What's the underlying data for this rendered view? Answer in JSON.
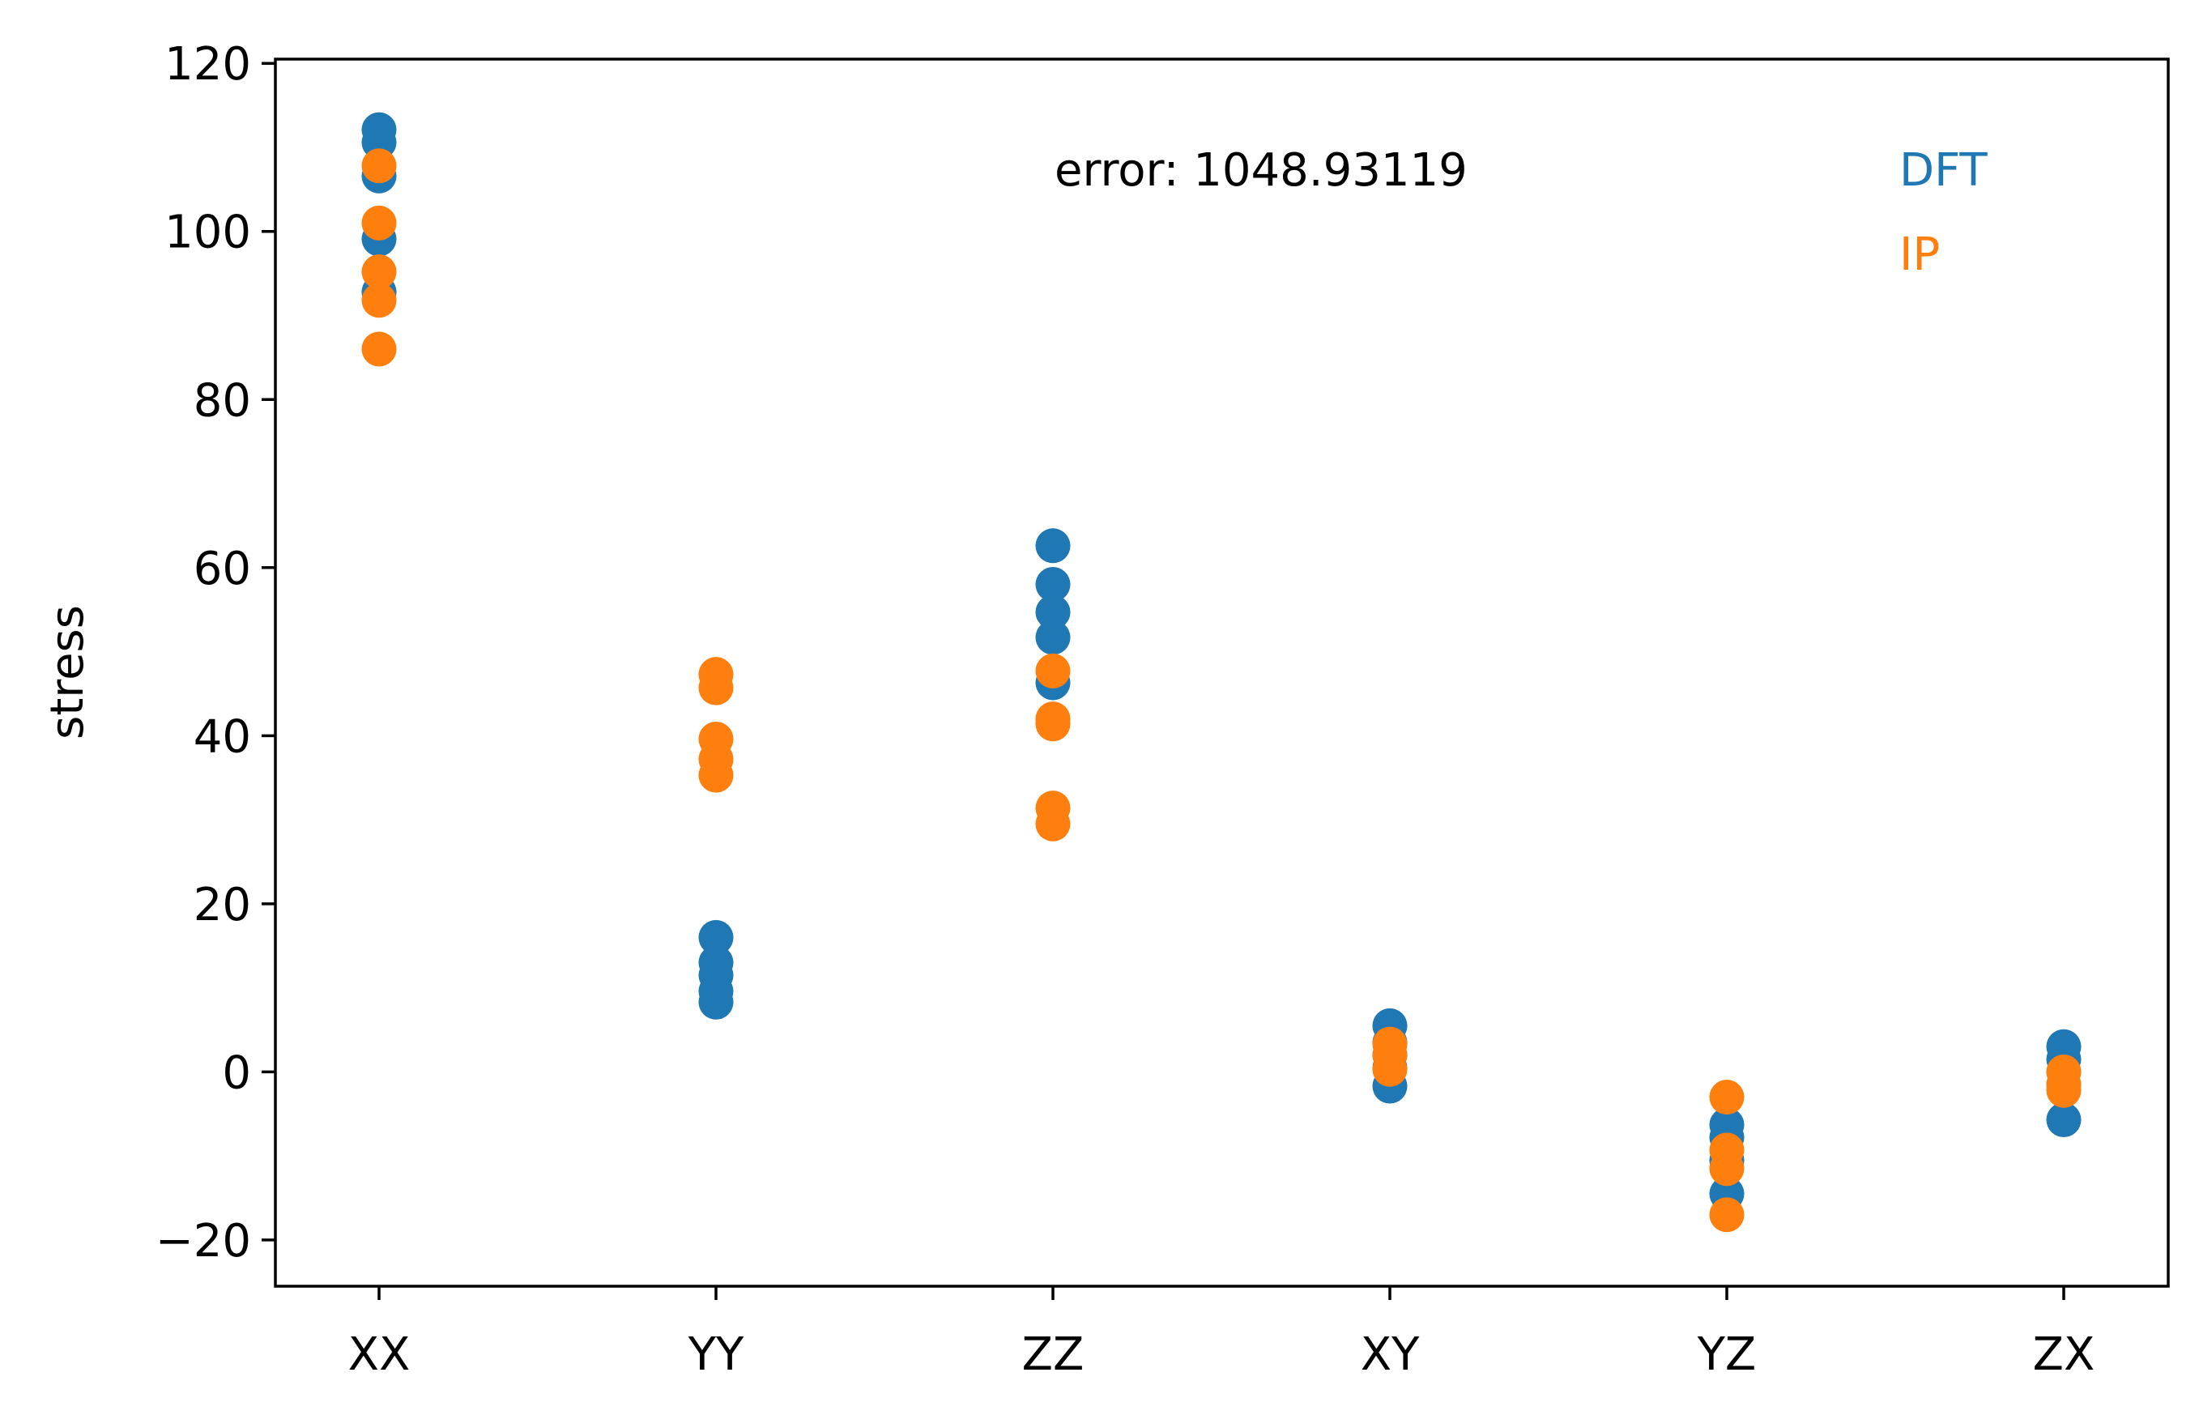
{
  "chart_data": {
    "type": "scatter",
    "title": "",
    "xlabel": "",
    "ylabel": "stress",
    "categories": [
      "XX",
      "YY",
      "ZZ",
      "XY",
      "YZ",
      "ZX"
    ],
    "ylim": [
      -25.5,
      120.5
    ],
    "yticks": [
      -20,
      0,
      20,
      40,
      60,
      80,
      100,
      120
    ],
    "ytick_labels": [
      "−20",
      "0",
      "20",
      "40",
      "60",
      "80",
      "100",
      "120"
    ],
    "grid": false,
    "annotation": "error: 1048.93119",
    "legend_position": "top-right",
    "colors": {
      "DFT": "#1f77b4",
      "IP": "#ff7f0e"
    },
    "series": [
      {
        "name": "DFT",
        "color": "#1f77b4",
        "points": [
          [
            "XX",
            112.1
          ],
          [
            "XX",
            110.6
          ],
          [
            "XX",
            106.6
          ],
          [
            "XX",
            99.1
          ],
          [
            "XX",
            92.8
          ],
          [
            "YY",
            16.0
          ],
          [
            "YY",
            13.0
          ],
          [
            "YY",
            11.5
          ],
          [
            "YY",
            9.6
          ],
          [
            "YY",
            8.3
          ],
          [
            "ZZ",
            62.6
          ],
          [
            "ZZ",
            58.0
          ],
          [
            "ZZ",
            54.7
          ],
          [
            "ZZ",
            51.7
          ],
          [
            "ZZ",
            46.3
          ],
          [
            "XY",
            5.5
          ],
          [
            "XY",
            3.5
          ],
          [
            "XY",
            2.0
          ],
          [
            "XY",
            0.5
          ],
          [
            "XY",
            -1.7
          ],
          [
            "YZ",
            -6.3
          ],
          [
            "YZ",
            -7.8
          ],
          [
            "YZ",
            -10.5
          ],
          [
            "YZ",
            -14.5
          ],
          [
            "ZX",
            3.0
          ],
          [
            "ZX",
            1.5
          ],
          [
            "ZX",
            0.0
          ],
          [
            "ZX",
            -1.5
          ],
          [
            "ZX",
            -5.7
          ]
        ]
      },
      {
        "name": "IP",
        "color": "#ff7f0e",
        "points": [
          [
            "XX",
            107.8
          ],
          [
            "XX",
            101.0
          ],
          [
            "XX",
            95.2
          ],
          [
            "XX",
            91.8
          ],
          [
            "XX",
            86.0
          ],
          [
            "YY",
            47.3
          ],
          [
            "YY",
            45.7
          ],
          [
            "YY",
            39.6
          ],
          [
            "YY",
            37.2
          ],
          [
            "YY",
            35.3
          ],
          [
            "ZZ",
            47.7
          ],
          [
            "ZZ",
            42.0
          ],
          [
            "ZZ",
            41.4
          ],
          [
            "ZZ",
            31.4
          ],
          [
            "ZZ",
            29.5
          ],
          [
            "XY",
            3.3
          ],
          [
            "XY",
            2.0
          ],
          [
            "XY",
            0.3
          ],
          [
            "YZ",
            -3.0
          ],
          [
            "YZ",
            -9.3
          ],
          [
            "YZ",
            -11.5
          ],
          [
            "YZ",
            -17.0
          ],
          [
            "ZX",
            0.0
          ],
          [
            "ZX",
            -1.5
          ],
          [
            "ZX",
            -2.2
          ]
        ]
      }
    ]
  }
}
